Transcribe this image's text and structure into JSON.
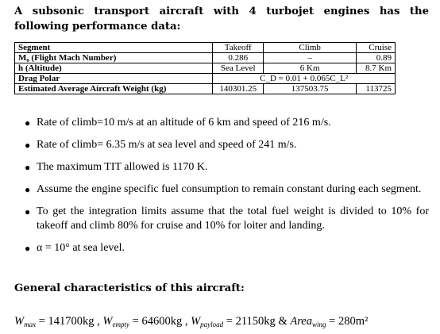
{
  "intro": "A subsonic transport aircraft with 4 turbojet engines has the following performance data:",
  "table": {
    "headers": [
      "Segment",
      "Takeoff",
      "Climb",
      "Cruise"
    ],
    "rows": [
      {
        "label": "M₀ (Flight Mach Number)",
        "takeoff": "0.286",
        "climb": "–",
        "cruise": "0.89"
      },
      {
        "label": "h (Altitude)",
        "takeoff": "Sea Level",
        "climb": "6 Km",
        "cruise": "8.7 Km"
      },
      {
        "label": "Drag Polar",
        "drag_polar": "C_D = 0.01 + 0.065C_L²"
      },
      {
        "label": "Estimated Average Aircraft Weight (kg)",
        "takeoff": "140301.25",
        "climb": "137503.75",
        "cruise": "113725"
      }
    ]
  },
  "bullets": [
    "Rate of climb=10 m/s at an altitude of 6 km and speed of 216 m/s.",
    "Rate of climb= 6.35 m/s at sea level and speed of 241 m/s.",
    "The maximum TIT allowed is 1170 K.",
    "Assume the engine specific fuel consumption to remain constant during each segment.",
    "To get the integration limits assume that the total fuel weight is divided to 10% for takeoff and climb 80% for cruise and 10% for loiter and landing.",
    "α = 10° at sea level."
  ],
  "general_heading": "General characteristics of this aircraft:",
  "formula": {
    "w_max": "141700kg",
    "w_empty": "64600kg",
    "w_payload": "21150kg",
    "area_wing": "280m²"
  }
}
